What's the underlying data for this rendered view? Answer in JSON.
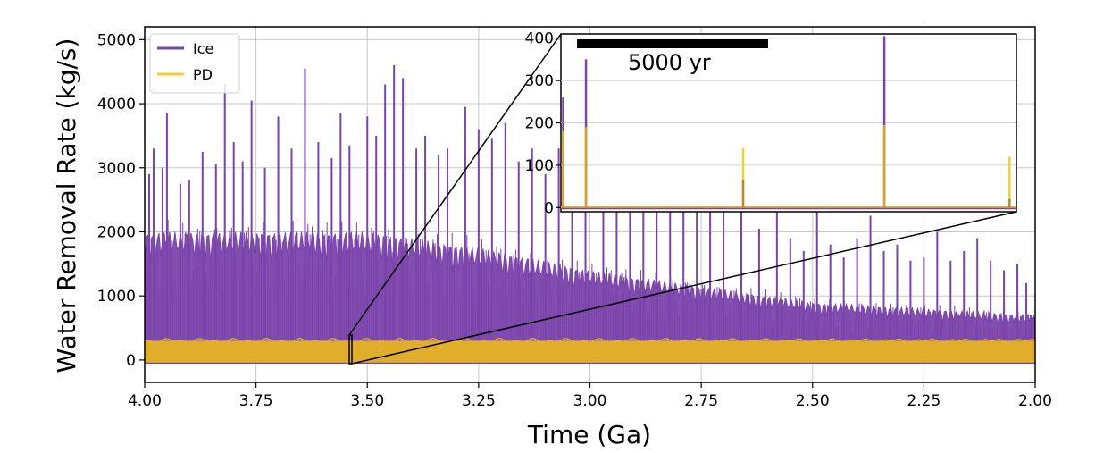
{
  "chart_data": {
    "type": "line",
    "xlabel": "Time (Ga)",
    "ylabel": "Water Removal Rate (kg/s)",
    "xlim": [
      4.0,
      2.0
    ],
    "ylim": [
      -350,
      5200
    ],
    "x_reversed": true,
    "xticks": [
      "4.00",
      "3.75",
      "3.50",
      "3.25",
      "3.00",
      "2.75",
      "2.50",
      "2.25",
      "2.00"
    ],
    "yticks": [
      "0",
      "1000",
      "2000",
      "3000",
      "4000",
      "5000"
    ],
    "grid": true,
    "legend": {
      "placement": "top-left",
      "entries": [
        "Ice",
        "PD"
      ]
    },
    "series": [
      {
        "name": "Ice",
        "color": "#7b44ab",
        "baseline_band": [
          [
            4.0,
            2000
          ],
          [
            3.75,
            2000
          ],
          [
            3.5,
            2000
          ],
          [
            3.25,
            1750
          ],
          [
            3.0,
            1400
          ],
          [
            2.75,
            1150
          ],
          [
            2.5,
            900
          ],
          [
            2.25,
            800
          ],
          [
            2.0,
            700
          ]
        ],
        "peaks": [
          [
            3.99,
            2900
          ],
          [
            3.98,
            3300
          ],
          [
            3.96,
            3000
          ],
          [
            3.95,
            3850
          ],
          [
            3.92,
            2750
          ],
          [
            3.9,
            2800
          ],
          [
            3.87,
            3250
          ],
          [
            3.84,
            3050
          ],
          [
            3.82,
            4300
          ],
          [
            3.8,
            3400
          ],
          [
            3.78,
            3100
          ],
          [
            3.76,
            4050
          ],
          [
            3.73,
            3000
          ],
          [
            3.7,
            3800
          ],
          [
            3.67,
            3300
          ],
          [
            3.64,
            4550
          ],
          [
            3.61,
            3400
          ],
          [
            3.58,
            3150
          ],
          [
            3.56,
            3850
          ],
          [
            3.54,
            3350
          ],
          [
            3.5,
            3800
          ],
          [
            3.48,
            3500
          ],
          [
            3.46,
            4300
          ],
          [
            3.44,
            4600
          ],
          [
            3.42,
            4400
          ],
          [
            3.39,
            3300
          ],
          [
            3.37,
            3500
          ],
          [
            3.34,
            3200
          ],
          [
            3.32,
            3300
          ],
          [
            3.28,
            3950
          ],
          [
            3.25,
            3600
          ],
          [
            3.22,
            3450
          ],
          [
            3.19,
            3700
          ],
          [
            3.16,
            3100
          ],
          [
            3.13,
            3300
          ],
          [
            3.1,
            2900
          ],
          [
            3.07,
            3300
          ],
          [
            3.04,
            3200
          ],
          [
            3.01,
            2800
          ],
          [
            2.97,
            3000
          ],
          [
            2.94,
            3700
          ],
          [
            2.91,
            3000
          ],
          [
            2.88,
            2600
          ],
          [
            2.85,
            2500
          ],
          [
            2.82,
            2700
          ],
          [
            2.79,
            3000
          ],
          [
            2.76,
            2400
          ],
          [
            2.73,
            2350
          ],
          [
            2.7,
            2400
          ],
          [
            2.66,
            2450
          ],
          [
            2.62,
            2050
          ],
          [
            2.58,
            3100
          ],
          [
            2.55,
            1900
          ],
          [
            2.52,
            1700
          ],
          [
            2.49,
            3000
          ],
          [
            2.46,
            1800
          ],
          [
            2.43,
            1600
          ],
          [
            2.4,
            1900
          ],
          [
            2.37,
            2250
          ],
          [
            2.34,
            1700
          ],
          [
            2.31,
            1800
          ],
          [
            2.28,
            1550
          ],
          [
            2.25,
            1600
          ],
          [
            2.22,
            2000
          ],
          [
            2.19,
            1550
          ],
          [
            2.16,
            1700
          ],
          [
            2.13,
            1900
          ],
          [
            2.1,
            1550
          ],
          [
            2.07,
            1400
          ],
          [
            2.04,
            1500
          ],
          [
            2.02,
            1200
          ],
          [
            2.01,
            700
          ]
        ]
      },
      {
        "name": "PD",
        "color": "#e8b81f",
        "band": [
          -40,
          300
        ]
      }
    ],
    "inset": {
      "source_x": 3.55,
      "source_y_range": [
        0,
        420
      ],
      "ylim": [
        -10,
        410
      ],
      "yticks": [
        "0",
        "100",
        "200",
        "300",
        "400"
      ],
      "scale_bar_label": "5000 yr",
      "spikes": [
        {
          "pos": 0.005,
          "ice": 260,
          "pd": 180
        },
        {
          "pos": 0.055,
          "ice": 350,
          "pd": 190
        },
        {
          "pos": 0.4,
          "ice": 65,
          "pd": 140
        },
        {
          "pos": 0.71,
          "ice": 405,
          "pd": 195
        },
        {
          "pos": 0.985,
          "ice": 20,
          "pd": 120
        }
      ]
    }
  }
}
